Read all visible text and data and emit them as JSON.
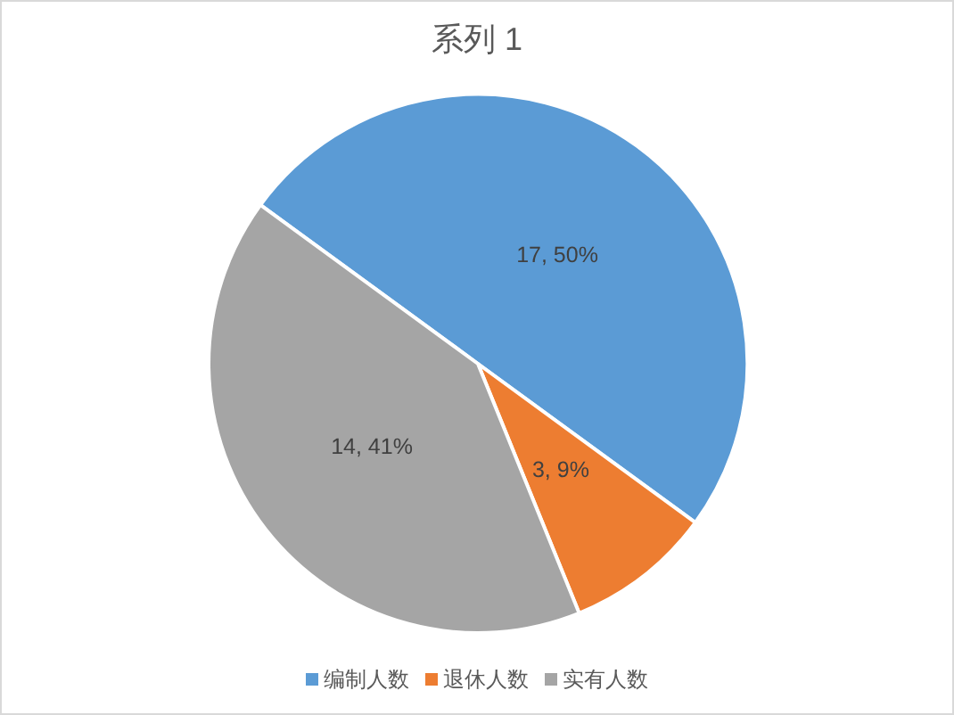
{
  "chart_data": {
    "type": "pie",
    "title": "系列 1",
    "categories": [
      "编制人数",
      "退休人数",
      "实有人数"
    ],
    "values": [
      17,
      3,
      14
    ],
    "colors": [
      "#5b9bd5",
      "#ed7d31",
      "#a5a5a5"
    ],
    "value_labels": [
      "17, 50%",
      "3, 9%",
      "14, 41%"
    ],
    "legend": "bottom"
  }
}
